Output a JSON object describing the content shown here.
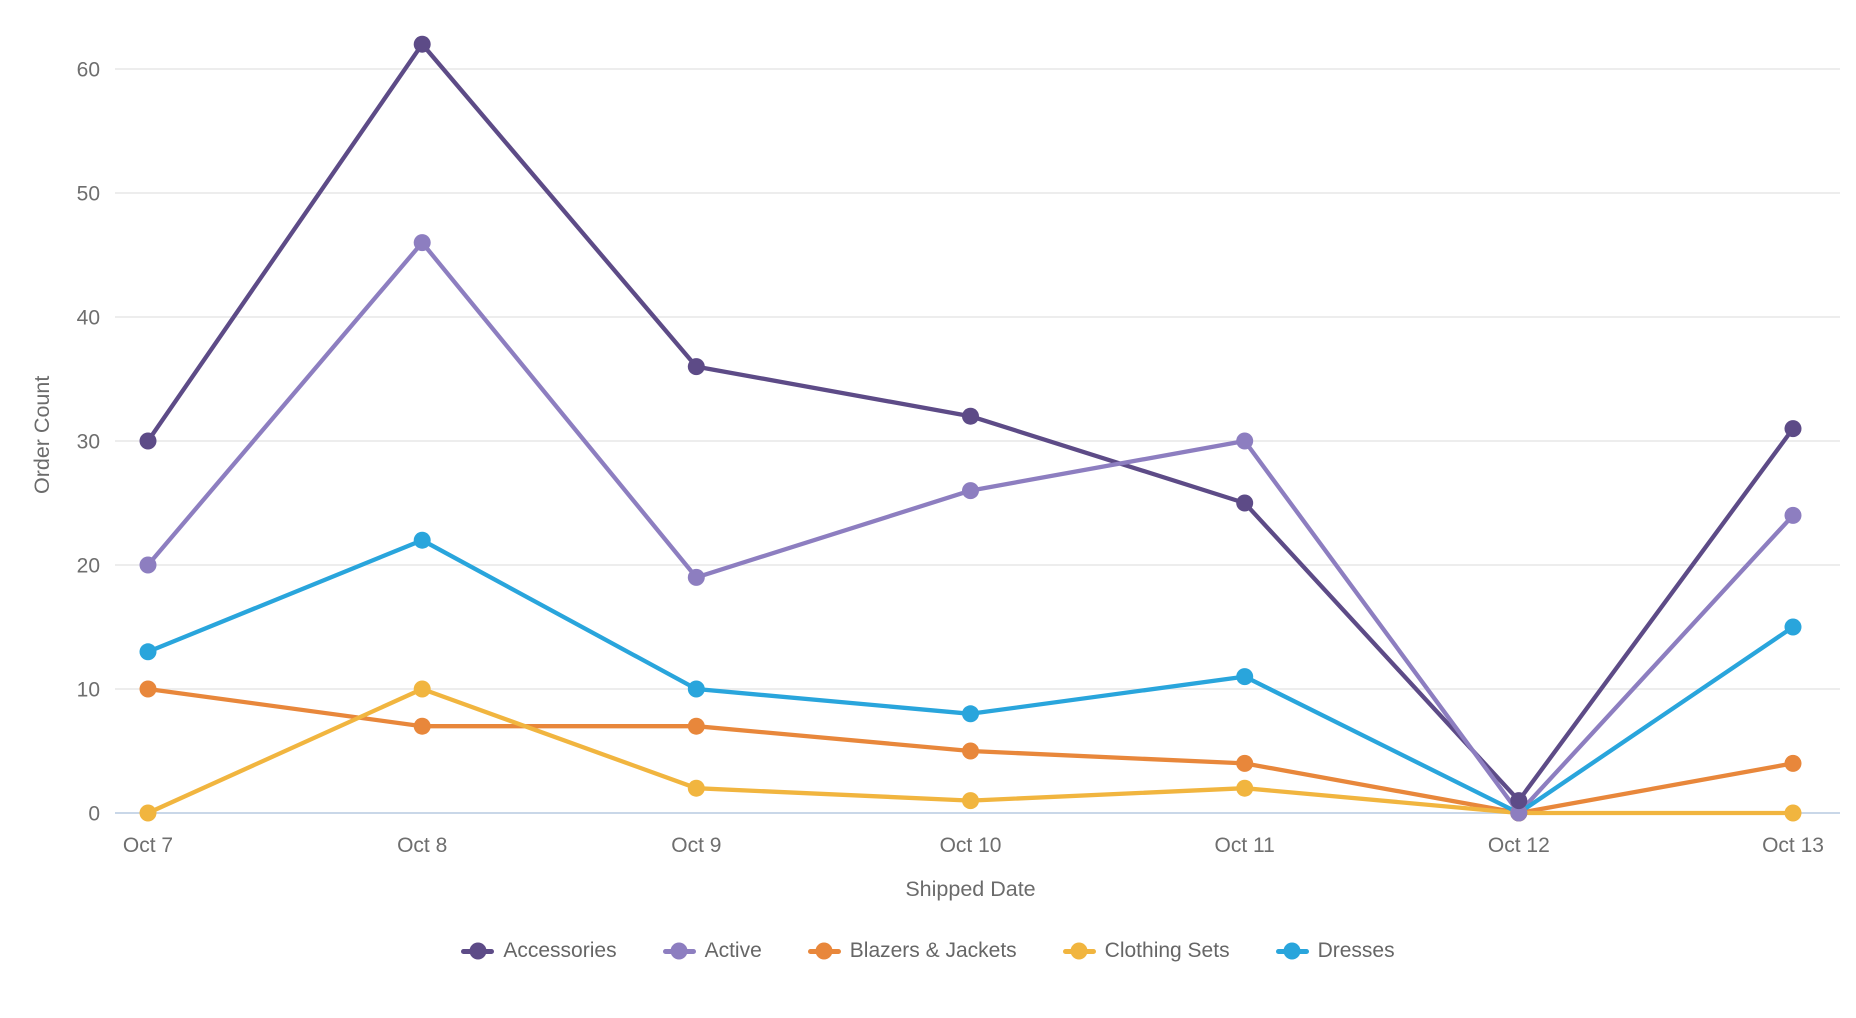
{
  "chart_data": {
    "type": "line",
    "title": "",
    "xlabel": "Shipped Date",
    "ylabel": "Order Count",
    "categories": [
      "Oct 7",
      "Oct 8",
      "Oct 9",
      "Oct 10",
      "Oct 11",
      "Oct 12",
      "Oct 13"
    ],
    "series": [
      {
        "name": "Accessories",
        "color": "#5d4b87",
        "values": [
          30,
          62,
          36,
          32,
          25,
          1,
          31
        ]
      },
      {
        "name": "Active",
        "color": "#8d7ec0",
        "values": [
          20,
          46,
          19,
          26,
          30,
          0,
          24
        ]
      },
      {
        "name": "Blazers & Jackets",
        "color": "#e8873b",
        "values": [
          10,
          7,
          7,
          5,
          4,
          0,
          4
        ]
      },
      {
        "name": "Clothing Sets",
        "color": "#f1b53f",
        "values": [
          0,
          10,
          2,
          1,
          2,
          0,
          0
        ]
      },
      {
        "name": "Dresses",
        "color": "#29a5dc",
        "values": [
          13,
          22,
          10,
          8,
          11,
          0,
          15
        ]
      }
    ],
    "yticks": [
      0,
      10,
      20,
      30,
      40,
      50,
      60
    ],
    "ylim": [
      0,
      65
    ],
    "grid": true,
    "legend_position": "bottom"
  },
  "colors": {
    "grid_line": "#e7e7e7",
    "zero_line": "#c9d7e8",
    "tick_text": "#6e6e6e",
    "axis_title_text": "#6b6b6b",
    "legend_text": "#666666",
    "background": "#ffffff"
  }
}
